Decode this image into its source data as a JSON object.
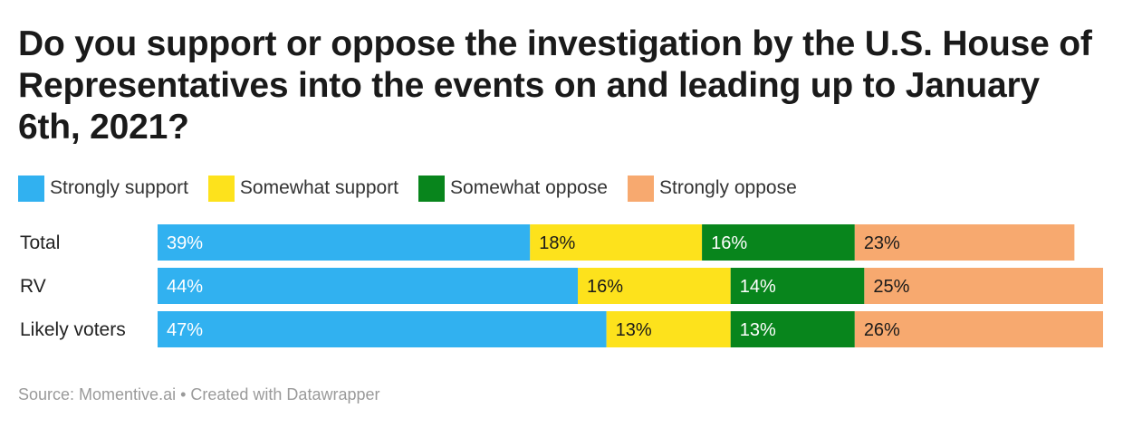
{
  "chart_data": {
    "type": "bar",
    "orientation": "horizontal",
    "stacked": true,
    "title": "Do you support or oppose the investigation by the U.S. House of Representatives into the events on and leading up to January 6th, 2021?",
    "categories": [
      "Total",
      "RV",
      "Likely voters"
    ],
    "series": [
      {
        "name": "Strongly support",
        "color": "#31b1f0",
        "label_color": "#ffffff",
        "values": [
          39,
          44,
          47
        ]
      },
      {
        "name": "Somewhat support",
        "color": "#fde21c",
        "label_color": "#1a1a1a",
        "values": [
          18,
          16,
          13
        ]
      },
      {
        "name": "Somewhat oppose",
        "color": "#08851c",
        "label_color": "#ffffff",
        "values": [
          16,
          14,
          13
        ]
      },
      {
        "name": "Strongly oppose",
        "color": "#f7a96f",
        "label_color": "#1a1a1a",
        "values": [
          23,
          25,
          26
        ]
      }
    ],
    "value_suffix": "%",
    "xlabel": "",
    "ylabel": "",
    "xlim": [
      0,
      99
    ],
    "grid": false,
    "legend_position": "top"
  },
  "source": "Source: Momentive.ai • Created with Datawrapper"
}
